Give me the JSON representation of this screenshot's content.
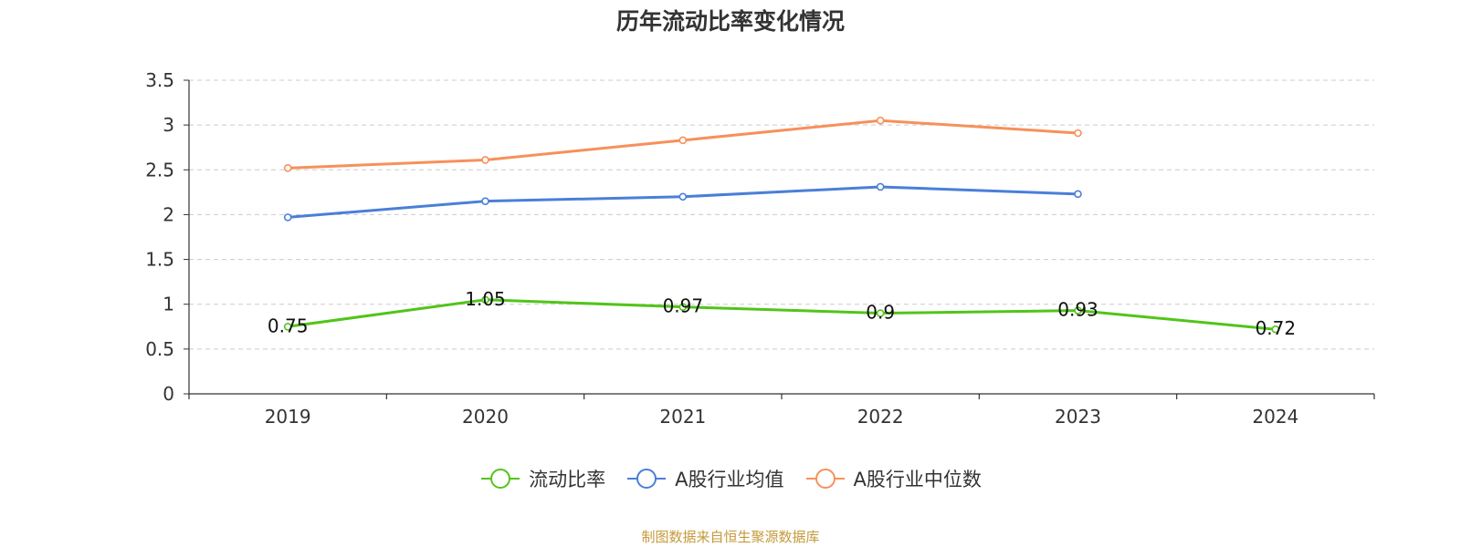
{
  "chart_data": {
    "type": "line",
    "title": "历年流动比率变化情况",
    "categories": [
      "2019",
      "2020",
      "2021",
      "2022",
      "2023",
      "2024"
    ],
    "ylim": [
      0,
      3.5
    ],
    "yticks": [
      "0",
      "0.5",
      "1",
      "1.5",
      "2",
      "2.5",
      "3",
      "3.5"
    ],
    "grid": true,
    "legend_position": "bottom",
    "series": [
      {
        "name": "流动比率",
        "color": "#52c41a",
        "values": [
          0.75,
          1.05,
          0.97,
          0.9,
          0.93,
          0.72
        ],
        "labels": [
          "0.75",
          "1.05",
          "0.97",
          "0.9",
          "0.93",
          "0.72"
        ]
      },
      {
        "name": "A股行业均值",
        "color": "#4a7fd8",
        "values": [
          1.97,
          2.15,
          2.2,
          2.31,
          2.23,
          null
        ]
      },
      {
        "name": "A股行业中位数",
        "color": "#f7905a",
        "values": [
          2.52,
          2.61,
          2.83,
          3.05,
          2.91,
          null
        ]
      }
    ]
  },
  "source": "制图数据来自恒生聚源数据库"
}
